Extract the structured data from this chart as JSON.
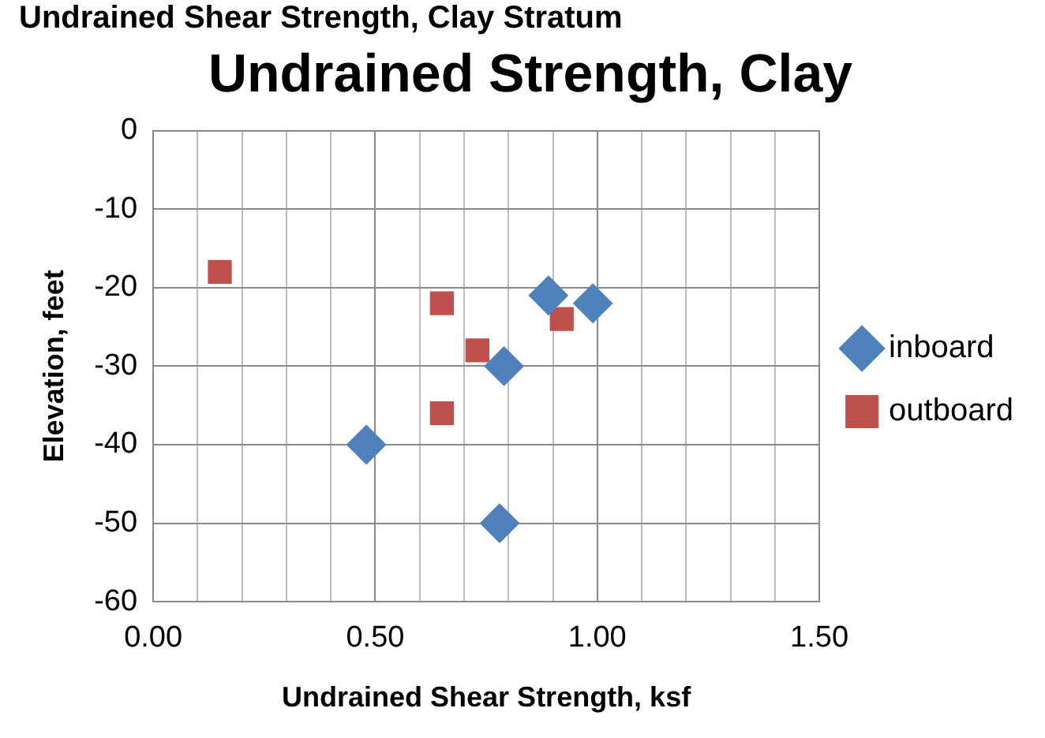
{
  "chart_data": {
    "type": "scatter",
    "title": "Undrained Strength, Clay",
    "xlabel": "Undrained Shear Strength, ksf",
    "ylabel": "Elevation, feet",
    "annotations": [
      "Undrained Shear Strength, Clay Stratum"
    ],
    "xlim": [
      0,
      1.5
    ],
    "xticks": [
      {
        "value": 0,
        "label": "0.00"
      },
      {
        "value": 0.1,
        "label": null
      },
      {
        "value": 0.2,
        "label": null
      },
      {
        "value": 0.3,
        "label": null
      },
      {
        "value": 0.4,
        "label": null
      },
      {
        "value": 0.5,
        "label": "0.50"
      },
      {
        "value": 0.6,
        "label": null
      },
      {
        "value": 0.7,
        "label": null
      },
      {
        "value": 0.8,
        "label": null
      },
      {
        "value": 0.9,
        "label": null
      },
      {
        "value": 1,
        "label": "1.00"
      },
      {
        "value": 1.1,
        "label": null
      },
      {
        "value": 1.2,
        "label": null
      },
      {
        "value": 1.3,
        "label": null
      },
      {
        "value": 1.4,
        "label": null
      },
      {
        "value": 1.5,
        "label": "1.50"
      }
    ],
    "ylim": [
      -60,
      0
    ],
    "yticks": [
      -60,
      -50,
      -40,
      -30,
      -20,
      -10,
      0
    ],
    "grid": true,
    "legend": "right",
    "series": [
      {
        "name": "inboard",
        "color": "#4f81bd",
        "marker": "diamond",
        "x": [
          0.89,
          0.99,
          0.79,
          0.48,
          0.78
        ],
        "values": [
          -21,
          -22,
          -30,
          -40,
          -50
        ]
      },
      {
        "name": "outboard",
        "color": "#c0504d",
        "marker": "square",
        "x": [
          0.15,
          0.65,
          0.73,
          0.92,
          0.65
        ],
        "values": [
          -18,
          -22,
          -28,
          -24,
          -36
        ]
      }
    ]
  }
}
